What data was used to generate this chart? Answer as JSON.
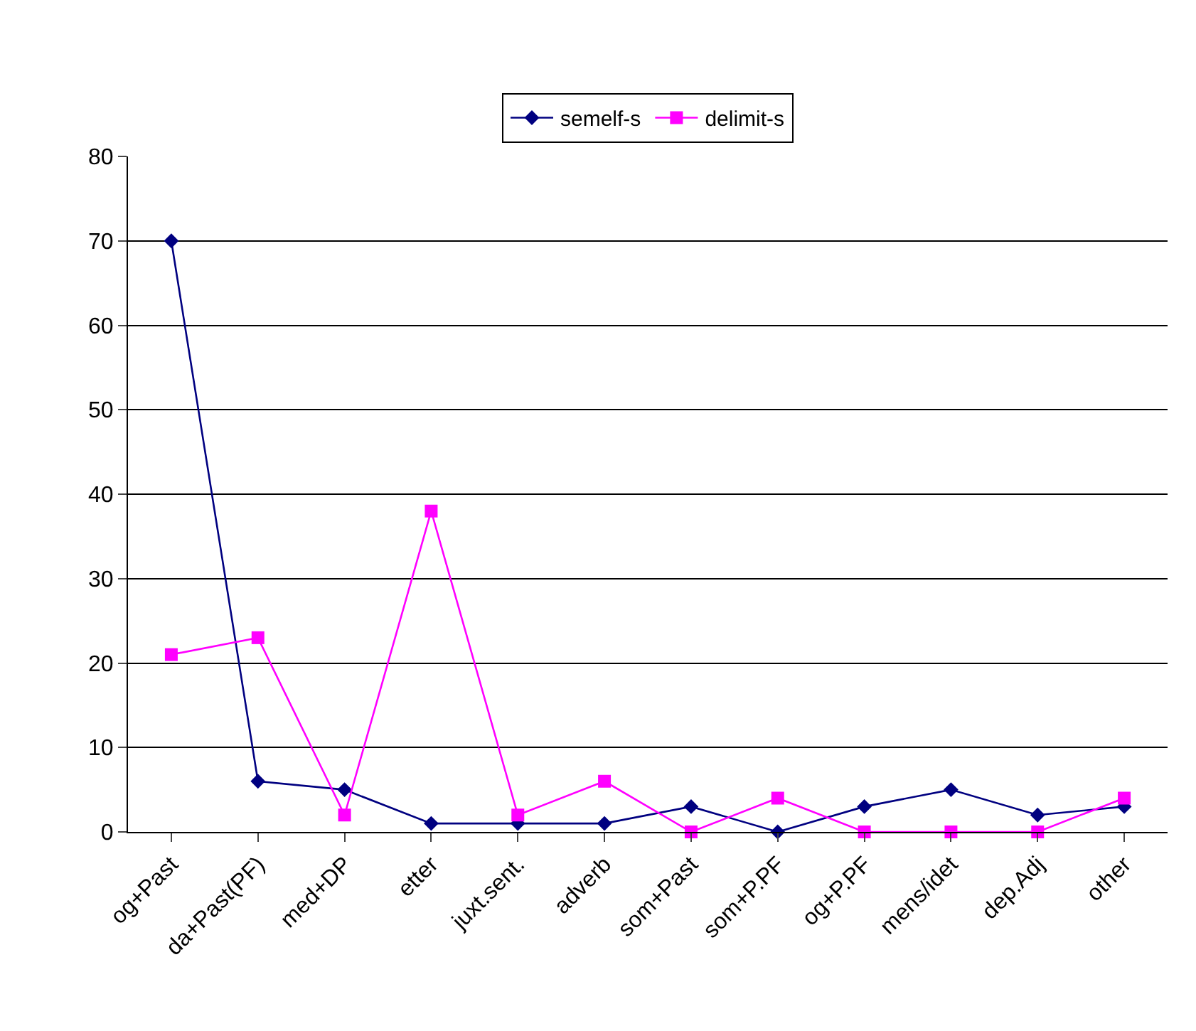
{
  "chart_data": {
    "type": "line",
    "categories": [
      "og+Past",
      "da+Past(PF)",
      "med+DP",
      "etter",
      "juxt.sent.",
      "adverb",
      "som+Past",
      "som+P.PF",
      "og+P.PF",
      "mens/idet",
      "dep.Adj",
      "other"
    ],
    "series": [
      {
        "name": "semelf-s",
        "color": "#000080",
        "marker": "diamond",
        "values": [
          70,
          6,
          5,
          1,
          1,
          1,
          3,
          0,
          3,
          5,
          2,
          3
        ]
      },
      {
        "name": "delimit-s",
        "color": "#ff00ff",
        "marker": "square",
        "values": [
          21,
          23,
          2,
          38,
          2,
          6,
          0,
          4,
          0,
          0,
          0,
          4
        ]
      }
    ],
    "ylim": [
      0,
      80
    ],
    "yticks": [
      0,
      10,
      20,
      30,
      40,
      50,
      60,
      70,
      80
    ],
    "grid": "y",
    "legend": "top",
    "line_style": "solid"
  }
}
